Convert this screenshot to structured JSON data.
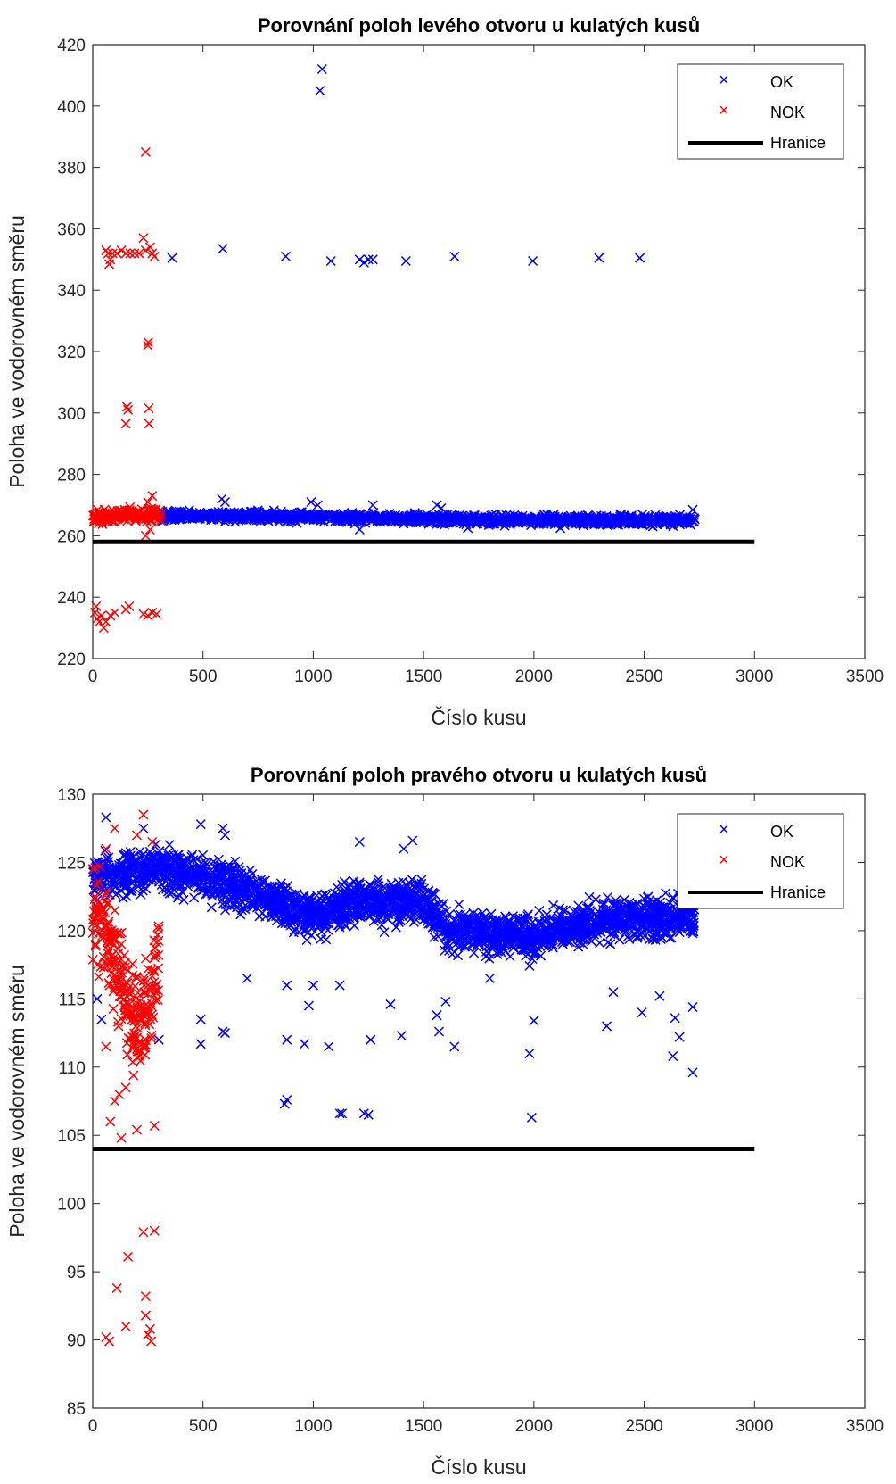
{
  "colors": {
    "ok": "#0000ff",
    "nok": "#ff0000",
    "boundary": "#000000",
    "axis": "#262626"
  },
  "chart_data": [
    {
      "type": "scatter",
      "title": "Porovnání poloh levého otvoru u kulatých kusů",
      "xlabel": "Číslo kusu",
      "ylabel": "Poloha ve vodorovném směru",
      "xlim": [
        0,
        3500
      ],
      "ylim": [
        220,
        420
      ],
      "xticks": [
        0,
        500,
        1000,
        1500,
        2000,
        2500,
        3000,
        3500
      ],
      "yticks": [
        220,
        240,
        260,
        280,
        300,
        320,
        340,
        360,
        380,
        400,
        420
      ],
      "xtick_labels": [
        "0",
        "500",
        "1000",
        "1500",
        "2000",
        "2500",
        "3000",
        "3500"
      ],
      "ytick_labels": [
        "220",
        "240",
        "260",
        "280",
        "300",
        "320",
        "340",
        "360",
        "380",
        "400",
        "420"
      ],
      "legend": {
        "location": "top-right",
        "entries": [
          "OK",
          "NOK",
          "Hranice"
        ]
      },
      "series": [
        {
          "name": "OK",
          "marker": "x",
          "color": "#0000ff",
          "band": {
            "x": [
              310,
              2730
            ],
            "center": [
              [
                310,
                266.5
              ],
              [
                600,
                266.5
              ],
              [
                1000,
                266
              ],
              [
                1500,
                265.5
              ],
              [
                2000,
                265
              ],
              [
                2500,
                265
              ],
              [
                2730,
                265
              ]
            ],
            "halfwidth": 2.2
          },
          "points": [
            [
              1040,
              412
            ],
            [
              1030,
              405
            ],
            [
              360,
              350.5
            ],
            [
              590,
              353.5
            ],
            [
              875,
              351
            ],
            [
              1080,
              349.5
            ],
            [
              1210,
              350
            ],
            [
              1230,
              349
            ],
            [
              1250,
              350
            ],
            [
              1270,
              350
            ],
            [
              1420,
              349.5
            ],
            [
              1640,
              351
            ],
            [
              1995,
              349.5
            ],
            [
              2295,
              350.5
            ],
            [
              2480,
              350.5
            ],
            [
              585,
              272
            ],
            [
              600,
              271
            ],
            [
              990,
              271
            ],
            [
              1020,
              270
            ],
            [
              1270,
              270
            ],
            [
              1560,
              270
            ],
            [
              1580,
              269
            ],
            [
              2720,
              268.5
            ],
            [
              1210,
              262
            ],
            [
              1700,
              262.5
            ],
            [
              2120,
              262.5
            ]
          ]
        },
        {
          "name": "NOK",
          "marker": "x",
          "color": "#ff0000",
          "band": {
            "x": [
              0,
              310
            ],
            "center": [
              [
                0,
                266
              ],
              [
                310,
                267
              ]
            ],
            "halfwidth": 3
          },
          "points": [
            [
              240,
              385
            ],
            [
              60,
              353
            ],
            [
              70,
              352
            ],
            [
              80,
              350
            ],
            [
              90,
              352
            ],
            [
              110,
              352
            ],
            [
              130,
              353
            ],
            [
              150,
              352
            ],
            [
              170,
              352
            ],
            [
              190,
              352
            ],
            [
              210,
              352
            ],
            [
              230,
              357
            ],
            [
              240,
              353
            ],
            [
              260,
              354
            ],
            [
              270,
              352
            ],
            [
              280,
              351
            ],
            [
              75,
              348.5
            ],
            [
              250,
              322
            ],
            [
              252,
              323
            ],
            [
              155,
              302
            ],
            [
              160,
              301
            ],
            [
              150,
              296.5
            ],
            [
              255,
              301.5
            ],
            [
              255,
              296.5
            ],
            [
              10,
              235
            ],
            [
              20,
              233
            ],
            [
              30,
              232
            ],
            [
              40,
              234
            ],
            [
              50,
              230
            ],
            [
              60,
              232
            ],
            [
              80,
              234
            ],
            [
              100,
              235
            ],
            [
              150,
              236
            ],
            [
              165,
              237
            ],
            [
              230,
              234.5
            ],
            [
              250,
              234
            ],
            [
              270,
              235
            ],
            [
              290,
              234.5
            ],
            [
              15,
              237
            ],
            [
              240,
              260
            ],
            [
              260,
              262
            ],
            [
              270,
              273
            ],
            [
              250,
              271
            ]
          ]
        },
        {
          "name": "Hranice",
          "type": "line",
          "color": "#000000",
          "x": [
            0,
            3000
          ],
          "y": [
            258,
            258
          ]
        }
      ]
    },
    {
      "type": "scatter",
      "title": "Porovnání poloh pravého otvoru u kulatých kusů",
      "xlabel": "Číslo kusu",
      "ylabel": "Poloha ve vodorovném směru",
      "xlim": [
        0,
        3500
      ],
      "ylim": [
        85,
        130
      ],
      "xticks": [
        0,
        500,
        1000,
        1500,
        2000,
        2500,
        3000,
        3500
      ],
      "yticks": [
        85,
        90,
        95,
        100,
        105,
        110,
        115,
        120,
        125,
        130
      ],
      "xtick_labels": [
        "0",
        "500",
        "1000",
        "1500",
        "2000",
        "2500",
        "3000",
        "3500"
      ],
      "ytick_labels": [
        "85",
        "90",
        "95",
        "100",
        "105",
        "110",
        "115",
        "120",
        "125",
        "130"
      ],
      "legend": {
        "location": "top-right",
        "entries": [
          "OK",
          "NOK",
          "Hranice"
        ]
      },
      "series": [
        {
          "name": "OK",
          "marker": "x",
          "color": "#0000ff",
          "band": {
            "x": [
              0,
              2730
            ],
            "center": [
              [
                0,
                124
              ],
              [
                300,
                124.5
              ],
              [
                500,
                124
              ],
              [
                700,
                123
              ],
              [
                1000,
                121
              ],
              [
                1200,
                122
              ],
              [
                1500,
                122
              ],
              [
                1600,
                120
              ],
              [
                2000,
                119.5
              ],
              [
                2200,
                120.5
              ],
              [
                2500,
                121
              ],
              [
                2730,
                121
              ]
            ],
            "halfwidth": 2.2
          },
          "points": [
            [
              60,
              128.3
            ],
            [
              230,
              127.5
            ],
            [
              590,
              127.5
            ],
            [
              600,
              127
            ],
            [
              490,
              127.8
            ],
            [
              1210,
              126.5
            ],
            [
              1410,
              126
            ],
            [
              1450,
              126.6
            ],
            [
              880,
              116
            ],
            [
              870,
              107.3
            ],
            [
              880,
              107.6
            ],
            [
              1120,
              106.6
            ],
            [
              1130,
              106.6
            ],
            [
              1230,
              106.6
            ],
            [
              1250,
              106.5
            ],
            [
              1990,
              106.3
            ],
            [
              490,
              113.5
            ],
            [
              490,
              111.7
            ],
            [
              590,
              112.6
            ],
            [
              600,
              112.5
            ],
            [
              880,
              112
            ],
            [
              960,
              111.7
            ],
            [
              1070,
              111.5
            ],
            [
              1260,
              112
            ],
            [
              1400,
              112.3
            ],
            [
              1570,
              112.6
            ],
            [
              1640,
              111.5
            ],
            [
              2000,
              113.4
            ],
            [
              1980,
              111
            ],
            [
              2490,
              114
            ],
            [
              2630,
              110.8
            ],
            [
              2660,
              112.2
            ],
            [
              2720,
              109.6
            ],
            [
              2640,
              113.6
            ],
            [
              2720,
              114.4
            ],
            [
              2360,
              115.5
            ],
            [
              2330,
              113
            ],
            [
              20,
              115
            ],
            [
              40,
              113.5
            ],
            [
              300,
              112
            ],
            [
              1120,
              116
            ],
            [
              1560,
              113.8
            ],
            [
              980,
              114.5
            ],
            [
              1350,
              114.6
            ],
            [
              1600,
              114.8
            ],
            [
              1800,
              116.5
            ],
            [
              700,
              116.5
            ],
            [
              1000,
              116
            ],
            [
              2570,
              115.2
            ]
          ]
        },
        {
          "name": "NOK",
          "marker": "x",
          "color": "#ff0000",
          "band": {
            "x": [
              0,
              300
            ],
            "center": [
              [
                0,
                122
              ],
              [
                100,
                118
              ],
              [
                150,
                115
              ],
              [
                200,
                113
              ],
              [
                250,
                114
              ],
              [
                300,
                118
              ]
            ],
            "halfwidth": 5
          },
          "points": [
            [
              230,
              128.5
            ],
            [
              60,
              126
            ],
            [
              100,
              127.5
            ],
            [
              200,
              127
            ],
            [
              270,
              126.5
            ],
            [
              80,
              106
            ],
            [
              130,
              104.8
            ],
            [
              200,
              105.4
            ],
            [
              280,
              105.7
            ],
            [
              100,
              107.5
            ],
            [
              120,
              108
            ],
            [
              150,
              108.5
            ],
            [
              60,
              111.5
            ],
            [
              20,
              117.5
            ],
            [
              230,
              97.9
            ],
            [
              280,
              98
            ],
            [
              160,
              96.1
            ],
            [
              110,
              93.8
            ],
            [
              240,
              93.2
            ],
            [
              240,
              91.8
            ],
            [
              150,
              91
            ],
            [
              260,
              90.8
            ],
            [
              60,
              90.2
            ],
            [
              75,
              89.9
            ],
            [
              250,
              90.4
            ],
            [
              265,
              89.9
            ]
          ]
        },
        {
          "name": "Hranice",
          "type": "line",
          "color": "#000000",
          "x": [
            0,
            3000
          ],
          "y": [
            104,
            104
          ]
        }
      ]
    }
  ]
}
